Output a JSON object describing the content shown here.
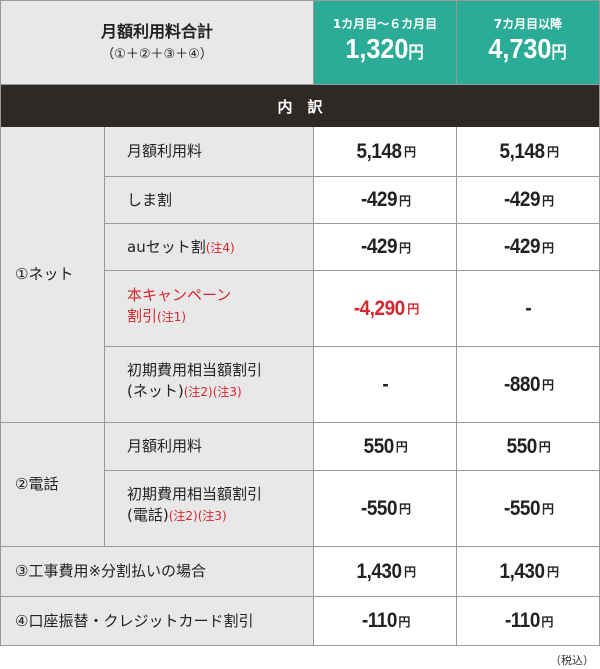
{
  "header": {
    "title": "月額利用料合計",
    "subtitle": "（①＋②＋③＋④）",
    "col1_top": "1カ月目～６カ月目",
    "col1_price": "1,320",
    "col2_top": "7カ月目以降",
    "col2_price": "4,730",
    "yen": "円"
  },
  "breakdown_label": "内　訳",
  "group_net": "①ネット",
  "group_tel": "②電話",
  "rows": {
    "net_monthly": {
      "label": "月額利用料",
      "v1": "5,148",
      "v2": "5,148"
    },
    "shima": {
      "label": "しま割",
      "v1": "-429",
      "v2": "-429"
    },
    "au_set": {
      "label": "auセット割",
      "note": "(注4)",
      "v1": "-429",
      "v2": "-429"
    },
    "campaign": {
      "label1": "本キャンペーン",
      "label2": "割引",
      "note": "(注1)",
      "v1": "-4,290",
      "v2": "-"
    },
    "net_initial": {
      "label1": "初期費用相当額割引",
      "label2": "(ネット)",
      "note": "(注2)(注3)",
      "v1": "-",
      "v2": "-880"
    },
    "tel_monthly": {
      "label": "月額利用料",
      "v1": "550",
      "v2": "550"
    },
    "tel_initial": {
      "label1": "初期費用相当額割引",
      "label2": "(電話)",
      "note": "(注2)(注3)",
      "v1": "-550",
      "v2": "-550"
    },
    "construction": {
      "label": "③工事費用※分割払いの場合",
      "v1": "1,430",
      "v2": "1,430"
    },
    "bank": {
      "label": "④口座振替・クレジットカード割引",
      "v1": "-110",
      "v2": "-110"
    }
  },
  "yen": "円",
  "footnote": "（税込）",
  "colors": {
    "teal": "#2aac97",
    "dark": "#2e2826",
    "gray": "#e8e8e8",
    "red": "#d8262e"
  }
}
